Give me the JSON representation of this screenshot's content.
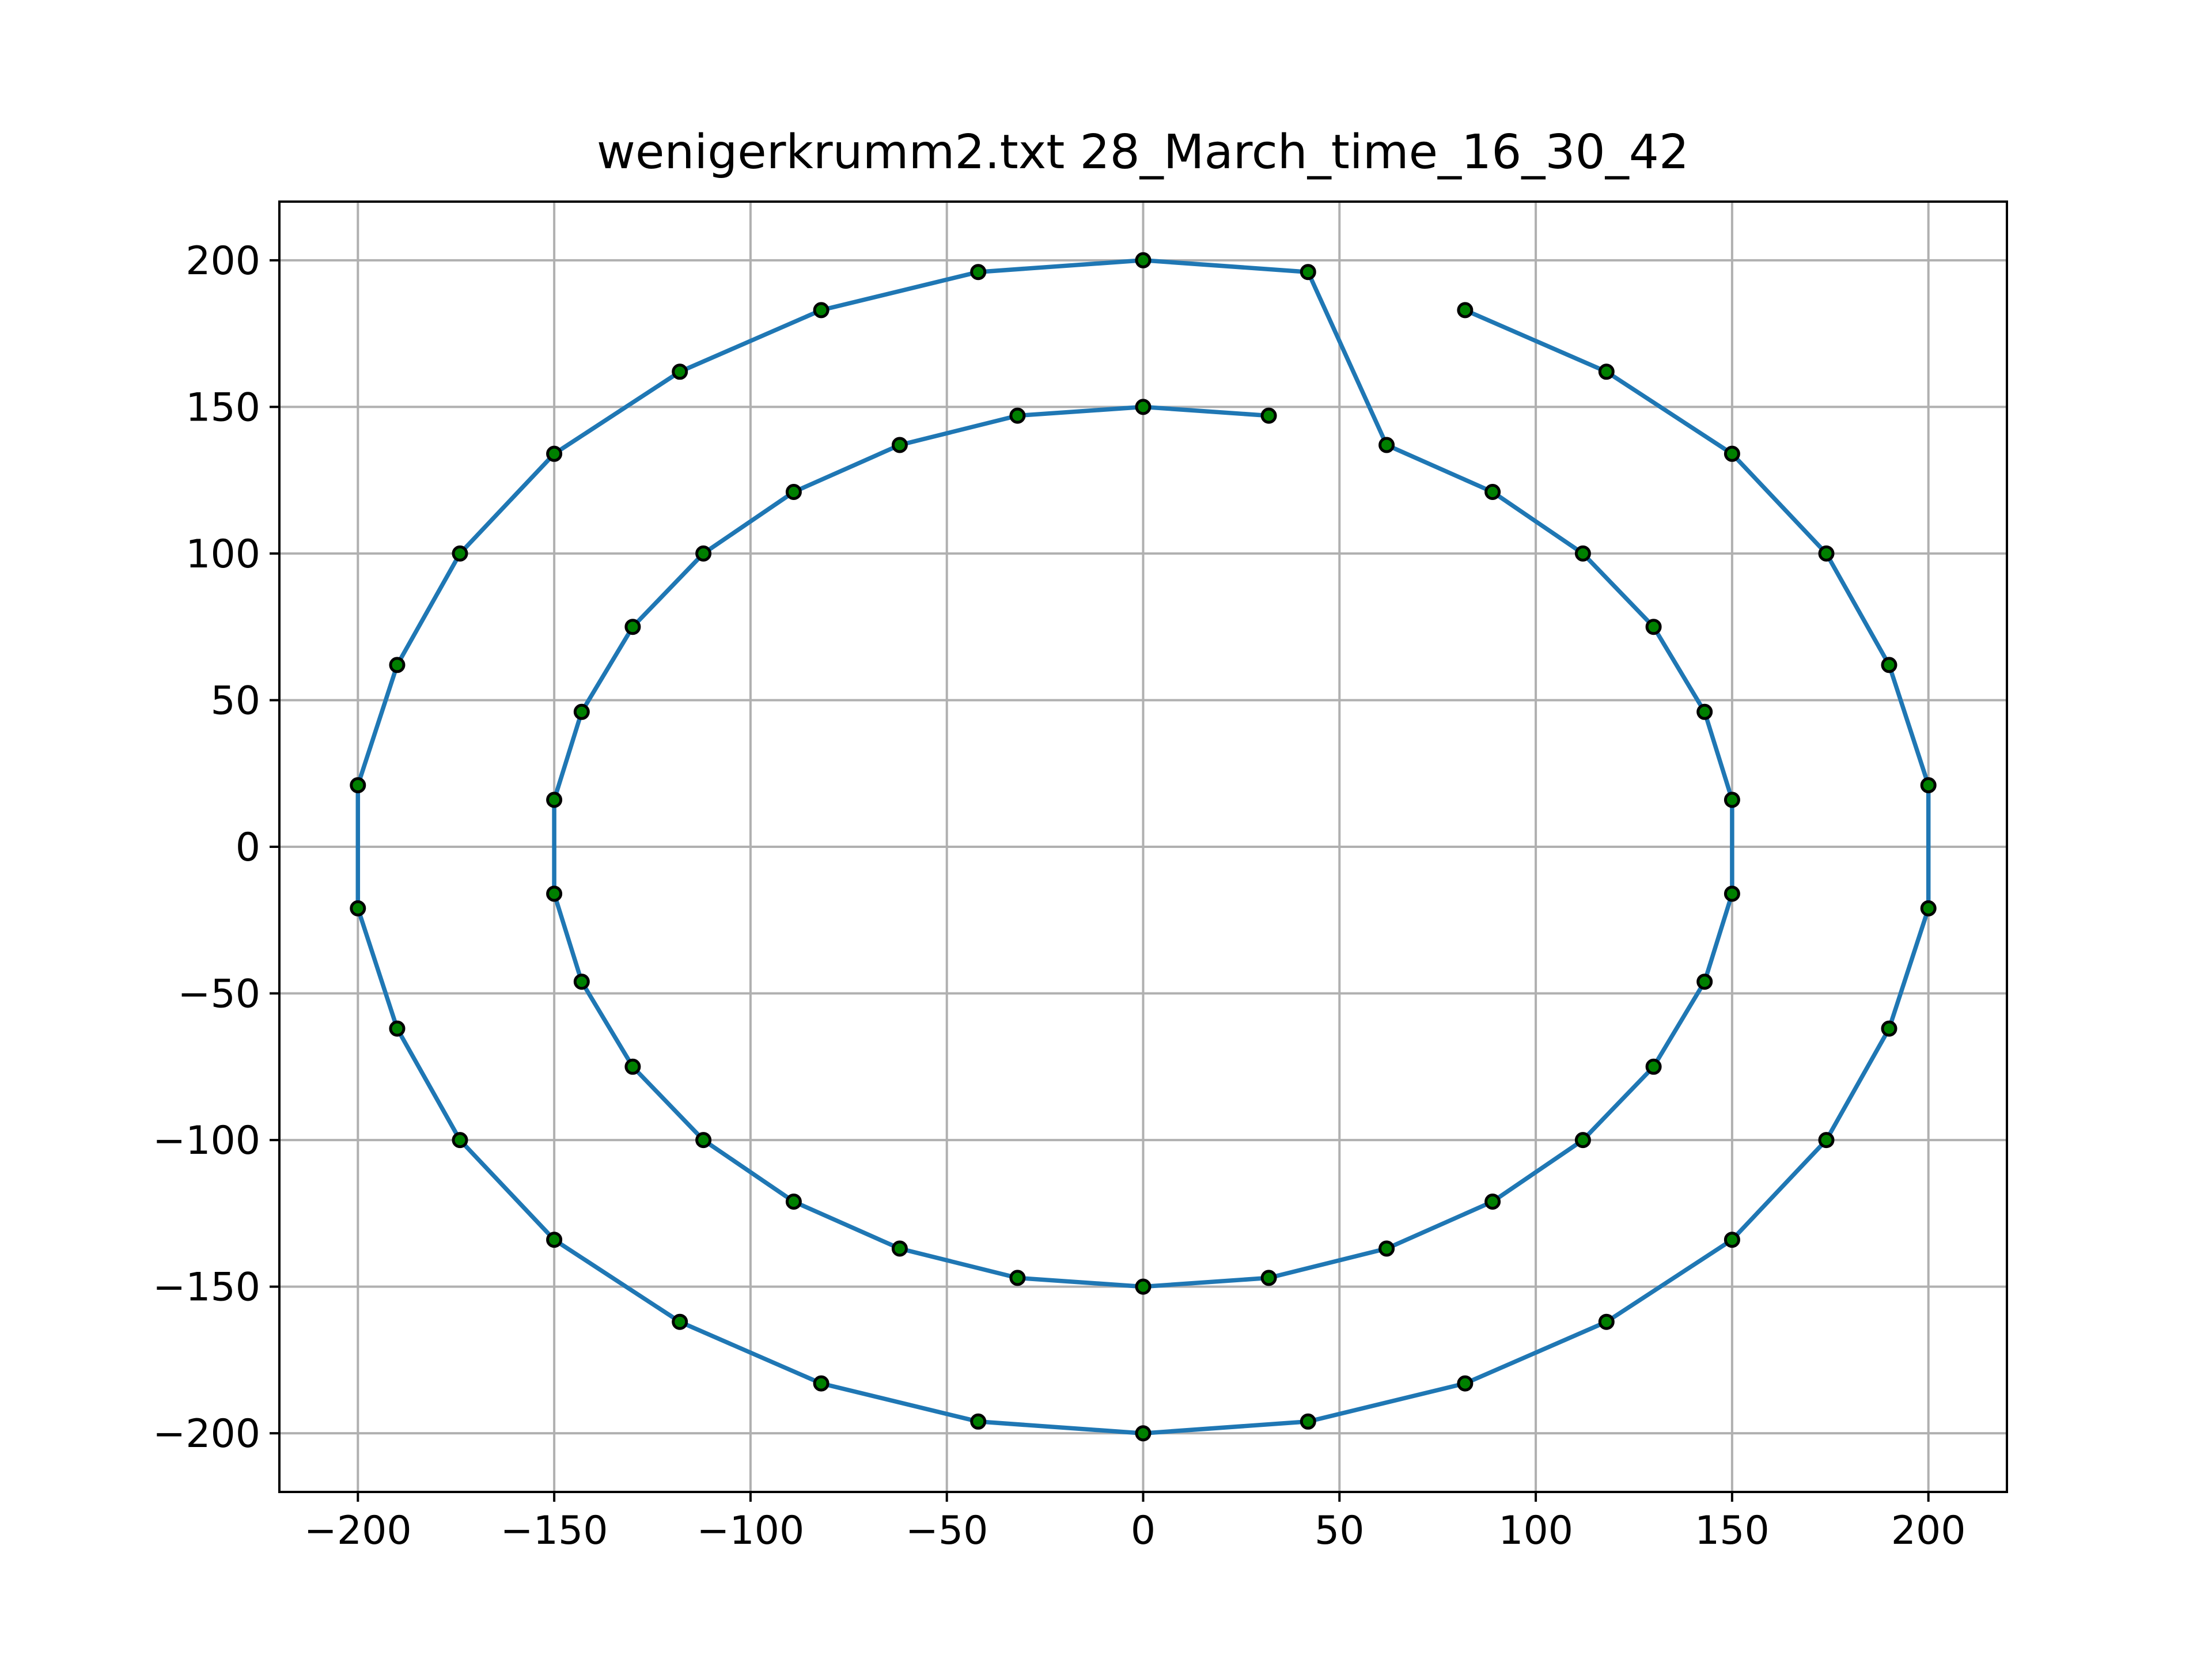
{
  "chart_data": {
    "type": "line",
    "title": "wenigerkrumm2.txt 28_March_time_16_30_42",
    "xlabel": "",
    "ylabel": "",
    "xlim": [
      -220,
      220
    ],
    "ylim": [
      -220,
      220
    ],
    "grid": true,
    "x_ticks": [
      -200,
      -150,
      -100,
      -50,
      0,
      50,
      100,
      150,
      200
    ],
    "y_ticks": [
      -200,
      -150,
      -100,
      -50,
      0,
      50,
      100,
      150,
      200
    ],
    "x_tick_labels": [
      "−200",
      "−150",
      "−100",
      "−50",
      "0",
      "50",
      "100",
      "150",
      "200"
    ],
    "y_tick_labels": [
      "−200",
      "−150",
      "−100",
      "−50",
      "0",
      "50",
      "100",
      "150",
      "200"
    ],
    "line_color": "#1f77b4",
    "marker_face_color": "#008000",
    "marker_edge_color": "#000000",
    "series": [
      {
        "points": [
          [
            82,
            183
          ],
          [
            118,
            162
          ],
          [
            150,
            134
          ],
          [
            174,
            100
          ],
          [
            190,
            62
          ],
          [
            200,
            21
          ],
          [
            200,
            -21
          ],
          [
            190,
            -62
          ],
          [
            174,
            -100
          ],
          [
            150,
            -134
          ],
          [
            118,
            -162
          ],
          [
            82,
            -183
          ],
          [
            42,
            -196
          ],
          [
            0,
            -200
          ],
          [
            -42,
            -196
          ],
          [
            -82,
            -183
          ],
          [
            -118,
            -162
          ],
          [
            -150,
            -134
          ],
          [
            -174,
            -100
          ],
          [
            -190,
            -62
          ],
          [
            -200,
            -21
          ],
          [
            -200,
            21
          ],
          [
            -190,
            62
          ],
          [
            -174,
            100
          ],
          [
            -150,
            134
          ],
          [
            -118,
            162
          ],
          [
            -82,
            183
          ],
          [
            -42,
            196
          ],
          [
            0,
            200
          ],
          [
            42,
            196
          ],
          [
            62,
            137
          ],
          [
            89,
            121
          ],
          [
            112,
            100
          ],
          [
            130,
            75
          ],
          [
            143,
            46
          ],
          [
            150,
            16
          ],
          [
            150,
            -16
          ],
          [
            143,
            -46
          ],
          [
            130,
            -75
          ],
          [
            112,
            -100
          ],
          [
            89,
            -121
          ],
          [
            62,
            -137
          ],
          [
            32,
            -147
          ],
          [
            0,
            -150
          ],
          [
            -32,
            -147
          ],
          [
            -62,
            -137
          ],
          [
            -89,
            -121
          ],
          [
            -112,
            -100
          ],
          [
            -130,
            -75
          ],
          [
            -143,
            -46
          ],
          [
            -150,
            -16
          ],
          [
            -150,
            16
          ],
          [
            -143,
            46
          ],
          [
            -130,
            75
          ],
          [
            -112,
            100
          ],
          [
            -89,
            121
          ],
          [
            -62,
            137
          ],
          [
            -32,
            147
          ],
          [
            0,
            150
          ],
          [
            32,
            147
          ]
        ]
      }
    ]
  }
}
